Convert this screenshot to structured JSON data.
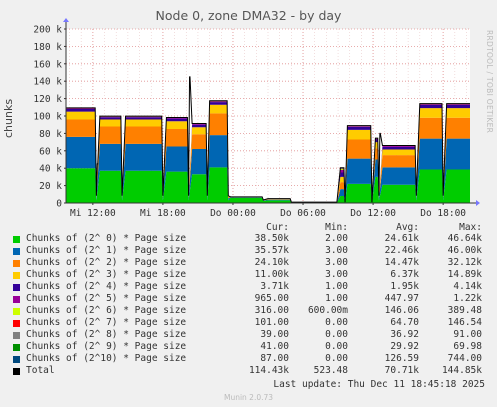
{
  "title": "Node 0, zone DMA32 - by day",
  "watermark": "RRDTOOL / TOBI OETIKER",
  "footer": {
    "last_update": "Last update: Thu Dec 11 18:45:18 2025",
    "munin_version": "Munin 2.0.73"
  },
  "legend_headers": {
    "cur": "Cur:",
    "min": "Min:",
    "avg": "Avg:",
    "max": "Max:"
  },
  "legend": [
    {
      "name": "Chunks of (2^ 0) * Page size",
      "color": "#00cc00",
      "cur": "38.50k",
      "min": "2.00",
      "avg": "24.61k",
      "max": "46.64k"
    },
    {
      "name": "Chunks of (2^ 1) * Page size",
      "color": "#0066b3",
      "cur": "35.57k",
      "min": "3.00",
      "avg": "22.46k",
      "max": "46.00k"
    },
    {
      "name": "Chunks of (2^ 2) * Page size",
      "color": "#ff8000",
      "cur": "24.10k",
      "min": "3.00",
      "avg": "14.47k",
      "max": "32.12k"
    },
    {
      "name": "Chunks of (2^ 3) * Page size",
      "color": "#ffcc00",
      "cur": "11.00k",
      "min": "3.00",
      "avg": "6.37k",
      "max": "14.89k"
    },
    {
      "name": "Chunks of (2^ 4) * Page size",
      "color": "#330099",
      "cur": "3.71k",
      "min": "1.00",
      "avg": "1.95k",
      "max": "4.14k"
    },
    {
      "name": "Chunks of (2^ 5) * Page size",
      "color": "#990099",
      "cur": "965.00",
      "min": "1.00",
      "avg": "447.97",
      "max": "1.22k"
    },
    {
      "name": "Chunks of (2^ 6) * Page size",
      "color": "#ccff00",
      "cur": "316.00",
      "min": "600.00m",
      "avg": "146.06",
      "max": "389.48"
    },
    {
      "name": "Chunks of (2^ 7) * Page size",
      "color": "#ff0000",
      "cur": "101.00",
      "min": "0.00",
      "avg": "64.70",
      "max": "146.54"
    },
    {
      "name": "Chunks of (2^ 8) * Page size",
      "color": "#808080",
      "cur": "39.00",
      "min": "0.00",
      "avg": "36.92",
      "max": "91.00"
    },
    {
      "name": "Chunks of (2^ 9) * Page size",
      "color": "#008f00",
      "cur": "41.00",
      "min": "0.00",
      "avg": "29.92",
      "max": "69.98"
    },
    {
      "name": "Chunks of (2^10) * Page size",
      "color": "#00487d",
      "cur": "87.00",
      "min": "0.00",
      "avg": "126.59",
      "max": "744.00"
    },
    {
      "name": "Total",
      "color": "#000000",
      "cur": "114.43k",
      "min": "523.48",
      "avg": "70.71k",
      "max": "144.85k"
    }
  ],
  "chart_data": {
    "type": "area",
    "title": "Node 0, zone DMA32 - by day",
    "ylabel": "chunks",
    "ylim": [
      0,
      200000
    ],
    "yticks": [
      0,
      20000,
      40000,
      60000,
      80000,
      100000,
      120000,
      140000,
      160000,
      180000,
      200000
    ],
    "ytick_labels": [
      "0",
      "20 k",
      "40 k",
      "60 k",
      "80 k",
      "100 k",
      "120 k",
      "140 k",
      "160 k",
      "180 k",
      "200 k"
    ],
    "xtick_labels": [
      "Mi 12:00",
      "Mi 18:00",
      "Do 00:00",
      "Do 06:00",
      "Do 12:00",
      "Do 18:00"
    ],
    "xticks_hours": [
      12,
      18,
      24,
      30,
      36,
      42
    ],
    "xlim_hours": [
      9.7,
      44.3
    ],
    "grid": true,
    "x_hours": [
      9.7,
      12.2,
      12.3,
      12.6,
      14.4,
      14.5,
      14.8,
      17.9,
      18.0,
      18.3,
      20.1,
      20.2,
      20.5,
      21.7,
      21.8,
      22.0,
      23.5,
      23.6,
      23.8,
      26.5,
      26.6,
      27.0,
      27.9,
      28.9,
      29.0,
      32.8,
      32.9,
      33.2,
      33.5,
      33.6,
      33.8,
      35.8,
      35.9,
      36.2,
      36.4,
      36.5,
      36.8,
      39.6,
      39.7,
      40.0,
      41.9,
      42.0,
      42.3,
      44.3
    ],
    "series": [
      {
        "name": "Chunks of (2^ 0) * Page size",
        "values": [
          40000,
          40000,
          3000,
          37000,
          37000,
          3000,
          37000,
          37000,
          3000,
          36000,
          36000,
          3000,
          33000,
          33000,
          3000,
          41000,
          41000,
          3000,
          6000,
          6000,
          2500,
          3000,
          3000,
          3000,
          500,
          500,
          500,
          8000,
          8000,
          500,
          22000,
          22000,
          500,
          30000,
          30000,
          3000,
          21000,
          21000,
          3000,
          38500,
          38500,
          3000,
          38500,
          38500
        ]
      },
      {
        "name": "Chunks of (2^ 1) * Page size",
        "values": [
          36000,
          36000,
          2500,
          31000,
          31000,
          2500,
          31000,
          31000,
          2500,
          29000,
          29000,
          2500,
          29000,
          29000,
          2500,
          37000,
          37000,
          2500,
          600,
          600,
          400,
          900,
          900,
          900,
          200,
          200,
          200,
          8000,
          8000,
          200,
          29000,
          29000,
          200,
          20000,
          20000,
          2500,
          20000,
          20000,
          2500,
          35500,
          35500,
          2500,
          35500,
          35500
        ]
      },
      {
        "name": "Chunks of (2^ 2) * Page size",
        "values": [
          20000,
          20000,
          1500,
          20000,
          20000,
          1500,
          20000,
          20000,
          1500,
          20000,
          20000,
          1500,
          17000,
          17000,
          1500,
          25000,
          25000,
          1500,
          200,
          200,
          200,
          400,
          400,
          400,
          100,
          100,
          100,
          8000,
          8000,
          100,
          22000,
          22000,
          100,
          13000,
          13000,
          1500,
          14000,
          14000,
          1500,
          24000,
          24000,
          1500,
          24000,
          24000
        ]
      },
      {
        "name": "Chunks of (2^ 3) * Page size",
        "values": [
          9000,
          9000,
          800,
          8000,
          8000,
          800,
          8000,
          8000,
          800,
          9000,
          9000,
          800,
          8000,
          8000,
          800,
          10000,
          10000,
          800,
          100,
          100,
          100,
          300,
          300,
          300,
          50,
          50,
          50,
          6000,
          6000,
          50,
          11000,
          11000,
          50,
          7000,
          7000,
          800,
          6500,
          6500,
          800,
          11000,
          11000,
          800,
          11000,
          11000
        ]
      },
      {
        "name": "Chunks of (2^ 4) * Page size",
        "values": [
          3000,
          3000,
          300,
          2500,
          2500,
          300,
          2500,
          2500,
          300,
          3000,
          3000,
          300,
          3000,
          3000,
          300,
          3000,
          3000,
          300,
          100,
          100,
          100,
          200,
          200,
          200,
          50,
          50,
          50,
          5000,
          5000,
          50,
          3500,
          3500,
          50,
          3000,
          3000,
          300,
          3000,
          3000,
          300,
          3700,
          3700,
          300,
          3700,
          3700
        ]
      },
      {
        "name": "Chunks of (2^ 5) * Page size",
        "values": [
          800,
          800,
          100,
          800,
          800,
          100,
          800,
          800,
          100,
          800,
          800,
          100,
          800,
          800,
          100,
          900,
          900,
          100,
          50,
          50,
          50,
          100,
          100,
          100,
          20,
          20,
          20,
          3000,
          3000,
          20,
          900,
          900,
          20,
          1000,
          1000,
          100,
          1000,
          1000,
          100,
          965,
          965,
          100,
          965,
          965
        ]
      },
      {
        "name": "Chunks of (2^ 6) * Page size",
        "values": [
          250,
          250,
          40,
          250,
          250,
          40,
          250,
          250,
          40,
          250,
          250,
          40,
          250,
          250,
          40,
          300,
          300,
          40,
          20,
          20,
          20,
          40,
          40,
          40,
          10,
          10,
          10,
          1000,
          1000,
          10,
          300,
          300,
          10,
          300,
          300,
          40,
          300,
          300,
          40,
          316,
          316,
          40,
          316,
          316
        ]
      },
      {
        "name": "Chunks of (2^ 7) * Page size",
        "values": [
          100,
          100,
          20,
          100,
          100,
          20,
          100,
          100,
          20,
          100,
          100,
          20,
          100,
          100,
          20,
          110,
          110,
          20,
          10,
          10,
          10,
          15,
          15,
          15,
          5,
          5,
          5,
          400,
          400,
          5,
          100,
          100,
          5,
          100,
          100,
          20,
          100,
          100,
          20,
          101,
          101,
          20,
          101,
          101
        ]
      },
      {
        "name": "Chunks of (2^ 8) * Page size",
        "values": [
          40,
          40,
          10,
          40,
          40,
          10,
          40,
          40,
          10,
          40,
          40,
          10,
          40,
          40,
          10,
          45,
          45,
          10,
          5,
          5,
          5,
          8,
          8,
          8,
          2,
          2,
          2,
          200,
          200,
          2,
          40,
          40,
          2,
          40,
          40,
          10,
          40,
          40,
          10,
          39,
          39,
          10,
          39,
          39
        ]
      },
      {
        "name": "Chunks of (2^ 9) * Page size",
        "values": [
          35,
          35,
          8,
          35,
          35,
          8,
          35,
          35,
          8,
          35,
          35,
          8,
          35,
          35,
          8,
          40,
          40,
          8,
          4,
          4,
          4,
          6,
          6,
          6,
          1,
          1,
          1,
          150,
          150,
          1,
          40,
          40,
          1,
          35,
          35,
          8,
          35,
          35,
          8,
          41,
          41,
          8,
          41,
          41
        ]
      },
      {
        "name": "Chunks of (2^10) * Page size",
        "values": [
          120,
          120,
          20,
          120,
          120,
          20,
          120,
          120,
          20,
          120,
          120,
          20,
          120,
          120,
          20,
          130,
          130,
          20,
          10,
          10,
          10,
          15,
          15,
          15,
          5,
          5,
          5,
          700,
          700,
          5,
          100,
          100,
          5,
          120,
          120,
          20,
          120,
          120,
          20,
          87,
          87,
          20,
          87,
          87
        ]
      }
    ],
    "total_spikes": [
      {
        "x_hour": 12.4,
        "y": 45000
      },
      {
        "x_hour": 20.3,
        "y": 145000
      },
      {
        "x_hour": 36.6,
        "y": 80000
      }
    ]
  }
}
